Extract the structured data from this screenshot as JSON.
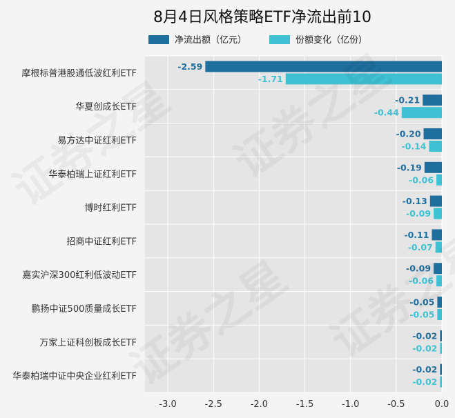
{
  "chart_data": {
    "type": "bar",
    "orientation": "horizontal",
    "title": "8月4日风格策略ETF净流出前10",
    "categories": [
      "摩根标普港股通低波红利ETF",
      "华夏创成长ETF",
      "易方达中证红利ETF",
      "华泰柏瑞上证红利ETF",
      "博时红利ETF",
      "招商中证红利ETF",
      "嘉实沪深300红利低波动ETF",
      "鹏扬中证500质量成长ETF",
      "万家上证科创板成长ETF",
      "华泰柏瑞中证中央企业红利ETF"
    ],
    "series": [
      {
        "name": "净流出额（亿元）",
        "color": "#1f6f9e",
        "values": [
          -2.59,
          -0.21,
          -0.2,
          -0.19,
          -0.13,
          -0.11,
          -0.09,
          -0.05,
          -0.02,
          -0.02
        ],
        "labels": [
          "-2.59",
          "-0.21",
          "-0.20",
          "-0.19",
          "-0.13",
          "-0.11",
          "-0.09",
          "-0.05",
          "-0.02",
          "-0.02"
        ]
      },
      {
        "name": "份额变化（亿份）",
        "color": "#3ec1d3",
        "values": [
          -1.71,
          -0.44,
          -0.14,
          -0.06,
          -0.09,
          -0.07,
          -0.06,
          -0.05,
          -0.02,
          -0.02
        ],
        "labels": [
          "-1.71",
          "-0.44",
          "-0.14",
          "-0.06",
          "-0.09",
          "-0.07",
          "-0.06",
          "-0.05",
          "-0.02",
          "-0.02"
        ]
      }
    ],
    "xlim": [
      -3.25,
      0.0
    ],
    "xticks": [
      -3.0,
      -2.5,
      -2.0,
      -1.5,
      -1.0,
      -0.5,
      0.0
    ],
    "xtick_labels": [
      "-3.0",
      "-2.5",
      "-2.0",
      "-1.5",
      "-1.0",
      "-0.5",
      "0.0"
    ],
    "grid": true,
    "legend_position": "top-center",
    "plot_background": "#e5e5e5"
  },
  "watermark": {
    "text": "证券之星"
  }
}
